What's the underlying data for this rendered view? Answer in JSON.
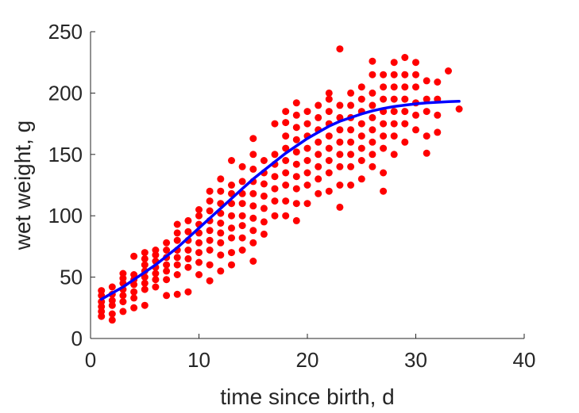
{
  "chart_data": {
    "type": "scatter",
    "xlabel": "time since birth, d",
    "ylabel": "wet weight, g",
    "xlim": [
      0,
      40
    ],
    "ylim": [
      0,
      250
    ],
    "xticks": [
      "0",
      "10",
      "20",
      "30",
      "40"
    ],
    "yticks": [
      "0",
      "50",
      "100",
      "150",
      "200",
      "250"
    ],
    "grid": false,
    "colors": {
      "points": "#ff0000",
      "fit": "#0000ff",
      "axis": "#262626"
    },
    "series": [
      {
        "type": "scatter",
        "points": [
          [
            1,
            18
          ],
          [
            1,
            22
          ],
          [
            1,
            26
          ],
          [
            1,
            30
          ],
          [
            1,
            35
          ],
          [
            1,
            39
          ],
          [
            2,
            15
          ],
          [
            2,
            20
          ],
          [
            2,
            27
          ],
          [
            2,
            31
          ],
          [
            2,
            36
          ],
          [
            2,
            42
          ],
          [
            3,
            22
          ],
          [
            3,
            30
          ],
          [
            3,
            35
          ],
          [
            3,
            40
          ],
          [
            3,
            45
          ],
          [
            3,
            49
          ],
          [
            3,
            53
          ],
          [
            4,
            25
          ],
          [
            4,
            33
          ],
          [
            4,
            38
          ],
          [
            4,
            44
          ],
          [
            4,
            48
          ],
          [
            4,
            52
          ],
          [
            4,
            67
          ],
          [
            5,
            27
          ],
          [
            5,
            40
          ],
          [
            5,
            45
          ],
          [
            5,
            50
          ],
          [
            5,
            55
          ],
          [
            5,
            60
          ],
          [
            5,
            65
          ],
          [
            5,
            70
          ],
          [
            6,
            42
          ],
          [
            6,
            48
          ],
          [
            6,
            53
          ],
          [
            6,
            58
          ],
          [
            6,
            63
          ],
          [
            6,
            68
          ],
          [
            6,
            72
          ],
          [
            7,
            35
          ],
          [
            7,
            48
          ],
          [
            7,
            55
          ],
          [
            7,
            60
          ],
          [
            7,
            66
          ],
          [
            7,
            72
          ],
          [
            7,
            78
          ],
          [
            8,
            36
          ],
          [
            8,
            52
          ],
          [
            8,
            60
          ],
          [
            8,
            66
          ],
          [
            8,
            72
          ],
          [
            8,
            80
          ],
          [
            8,
            86
          ],
          [
            8,
            93
          ],
          [
            9,
            38
          ],
          [
            9,
            58
          ],
          [
            9,
            65
          ],
          [
            9,
            72
          ],
          [
            9,
            80
          ],
          [
            9,
            87
          ],
          [
            9,
            96
          ],
          [
            10,
            52
          ],
          [
            10,
            62
          ],
          [
            10,
            70
          ],
          [
            10,
            78
          ],
          [
            10,
            86
          ],
          [
            10,
            93
          ],
          [
            10,
            100
          ],
          [
            10,
            105
          ],
          [
            11,
            47
          ],
          [
            11,
            60
          ],
          [
            11,
            72
          ],
          [
            11,
            80
          ],
          [
            11,
            88
          ],
          [
            11,
            96
          ],
          [
            11,
            104
          ],
          [
            11,
            112
          ],
          [
            11,
            120
          ],
          [
            12,
            55
          ],
          [
            12,
            68
          ],
          [
            12,
            78
          ],
          [
            12,
            86
          ],
          [
            12,
            94
          ],
          [
            12,
            102
          ],
          [
            12,
            110
          ],
          [
            12,
            120
          ],
          [
            12,
            130
          ],
          [
            13,
            60
          ],
          [
            13,
            70
          ],
          [
            13,
            82
          ],
          [
            13,
            90
          ],
          [
            13,
            100
          ],
          [
            13,
            110
          ],
          [
            13,
            118
          ],
          [
            13,
            125
          ],
          [
            13,
            145
          ],
          [
            14,
            72
          ],
          [
            14,
            82
          ],
          [
            14,
            92
          ],
          [
            14,
            100
          ],
          [
            14,
            110
          ],
          [
            14,
            118
          ],
          [
            14,
            128
          ],
          [
            14,
            140
          ],
          [
            15,
            63
          ],
          [
            15,
            78
          ],
          [
            15,
            88
          ],
          [
            15,
            98
          ],
          [
            15,
            108
          ],
          [
            15,
            118
          ],
          [
            15,
            128
          ],
          [
            15,
            138
          ],
          [
            15,
            150
          ],
          [
            15,
            163
          ],
          [
            16,
            85
          ],
          [
            16,
            95
          ],
          [
            16,
            106
          ],
          [
            16,
            116
          ],
          [
            16,
            126
          ],
          [
            16,
            135
          ],
          [
            16,
            145
          ],
          [
            17,
            100
          ],
          [
            17,
            112
          ],
          [
            17,
            122
          ],
          [
            17,
            132
          ],
          [
            17,
            142
          ],
          [
            17,
            150
          ],
          [
            17,
            175
          ],
          [
            18,
            100
          ],
          [
            18,
            112
          ],
          [
            18,
            125
          ],
          [
            18,
            135
          ],
          [
            18,
            145
          ],
          [
            18,
            155
          ],
          [
            18,
            165
          ],
          [
            18,
            176
          ],
          [
            18,
            185
          ],
          [
            19,
            96
          ],
          [
            19,
            110
          ],
          [
            19,
            122
          ],
          [
            19,
            132
          ],
          [
            19,
            142
          ],
          [
            19,
            152
          ],
          [
            19,
            162
          ],
          [
            19,
            172
          ],
          [
            19,
            182
          ],
          [
            19,
            192
          ],
          [
            20,
            110
          ],
          [
            20,
            125
          ],
          [
            20,
            135
          ],
          [
            20,
            145
          ],
          [
            20,
            155
          ],
          [
            20,
            165
          ],
          [
            20,
            175
          ],
          [
            20,
            185
          ],
          [
            21,
            118
          ],
          [
            21,
            130
          ],
          [
            21,
            140
          ],
          [
            21,
            150
          ],
          [
            21,
            160
          ],
          [
            21,
            170
          ],
          [
            21,
            180
          ],
          [
            21,
            190
          ],
          [
            22,
            120
          ],
          [
            22,
            135
          ],
          [
            22,
            145
          ],
          [
            22,
            155
          ],
          [
            22,
            165
          ],
          [
            22,
            175
          ],
          [
            22,
            185
          ],
          [
            22,
            195
          ],
          [
            22,
            200
          ],
          [
            23,
            107
          ],
          [
            23,
            125
          ],
          [
            23,
            140
          ],
          [
            23,
            150
          ],
          [
            23,
            160
          ],
          [
            23,
            170
          ],
          [
            23,
            180
          ],
          [
            23,
            190
          ],
          [
            23,
            236
          ],
          [
            24,
            125
          ],
          [
            24,
            140
          ],
          [
            24,
            150
          ],
          [
            24,
            160
          ],
          [
            24,
            170
          ],
          [
            24,
            180
          ],
          [
            24,
            190
          ],
          [
            24,
            200
          ],
          [
            25,
            130
          ],
          [
            25,
            145
          ],
          [
            25,
            155
          ],
          [
            25,
            165
          ],
          [
            25,
            175
          ],
          [
            25,
            185
          ],
          [
            25,
            195
          ],
          [
            25,
            205
          ],
          [
            26,
            140
          ],
          [
            26,
            150
          ],
          [
            26,
            160
          ],
          [
            26,
            170
          ],
          [
            26,
            180
          ],
          [
            26,
            190
          ],
          [
            26,
            200
          ],
          [
            26,
            215
          ],
          [
            26,
            226
          ],
          [
            27,
            120
          ],
          [
            27,
            135
          ],
          [
            27,
            155
          ],
          [
            27,
            165
          ],
          [
            27,
            175
          ],
          [
            27,
            185
          ],
          [
            27,
            195
          ],
          [
            27,
            205
          ],
          [
            27,
            215
          ],
          [
            28,
            150
          ],
          [
            28,
            165
          ],
          [
            28,
            175
          ],
          [
            28,
            185
          ],
          [
            28,
            195
          ],
          [
            28,
            205
          ],
          [
            28,
            215
          ],
          [
            28,
            225
          ],
          [
            29,
            160
          ],
          [
            29,
            175
          ],
          [
            29,
            185
          ],
          [
            29,
            195
          ],
          [
            29,
            205
          ],
          [
            29,
            215
          ],
          [
            29,
            229
          ],
          [
            30,
            170
          ],
          [
            30,
            182
          ],
          [
            30,
            192
          ],
          [
            30,
            205
          ],
          [
            30,
            215
          ],
          [
            30,
            225
          ],
          [
            31,
            151
          ],
          [
            31,
            165
          ],
          [
            31,
            185
          ],
          [
            31,
            195
          ],
          [
            31,
            210
          ],
          [
            32,
            168
          ],
          [
            32,
            182
          ],
          [
            32,
            195
          ],
          [
            32,
            209
          ],
          [
            33,
            218
          ],
          [
            34,
            187
          ]
        ]
      },
      {
        "type": "line",
        "x": [
          1,
          2,
          3,
          4,
          5,
          6,
          7,
          8,
          9,
          10,
          11,
          12,
          13,
          14,
          15,
          16,
          17,
          18,
          19,
          20,
          21,
          22,
          23,
          24,
          25,
          26,
          27,
          28,
          29,
          30,
          31,
          32,
          33,
          34
        ],
        "y": [
          32,
          37,
          42,
          48,
          54,
          60,
          67,
          74,
          82,
          90,
          98,
          106,
          114,
          122,
          130,
          137,
          144,
          151,
          157,
          163,
          168,
          173,
          177,
          180,
          183,
          185.5,
          187.5,
          189,
          190.2,
          191.2,
          192,
          192.5,
          193,
          193.3
        ]
      }
    ]
  }
}
